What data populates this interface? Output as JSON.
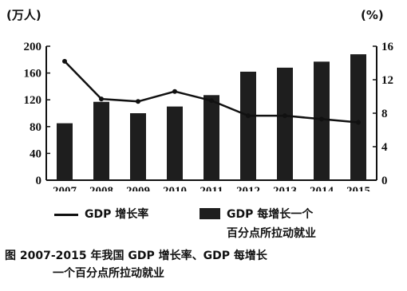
{
  "chart_data": {
    "type": "bar+line",
    "categories": [
      "2007",
      "2008",
      "2009",
      "2010",
      "2011",
      "2012",
      "2013",
      "2014",
      "2015"
    ],
    "series": [
      {
        "name": "GDP 每增长一个百分点所拉动就业",
        "type": "bar",
        "axis": "left",
        "values": [
          85,
          117,
          100,
          110,
          127,
          162,
          168,
          177,
          188
        ]
      },
      {
        "name": "GDP 增长率",
        "type": "line",
        "axis": "right",
        "values": [
          14.2,
          9.7,
          9.4,
          10.6,
          9.5,
          7.7,
          7.7,
          7.3,
          6.9
        ]
      }
    ],
    "left_axis": {
      "unit_label": "(万人)",
      "ylim": [
        0,
        200
      ],
      "ticks": [
        0,
        40,
        80,
        120,
        160,
        200
      ]
    },
    "right_axis": {
      "unit_label": "(%)",
      "ylim": [
        0,
        16
      ],
      "ticks": [
        0,
        4,
        8,
        12,
        16
      ]
    },
    "legend": {
      "line_label": "GDP 增长率",
      "bar_label_line1": "GDP 每增长一个",
      "bar_label_line2": "百分点所拉动就业",
      "placement": "bottom"
    },
    "caption_line1": "图  2007-2015 年我国 GDP 增长率、GDP 每增长",
    "caption_line2": "一个百分点所拉动就业",
    "colors": {
      "bar": "#1e1e1e",
      "line": "#111111",
      "axis": "#111111"
    }
  }
}
